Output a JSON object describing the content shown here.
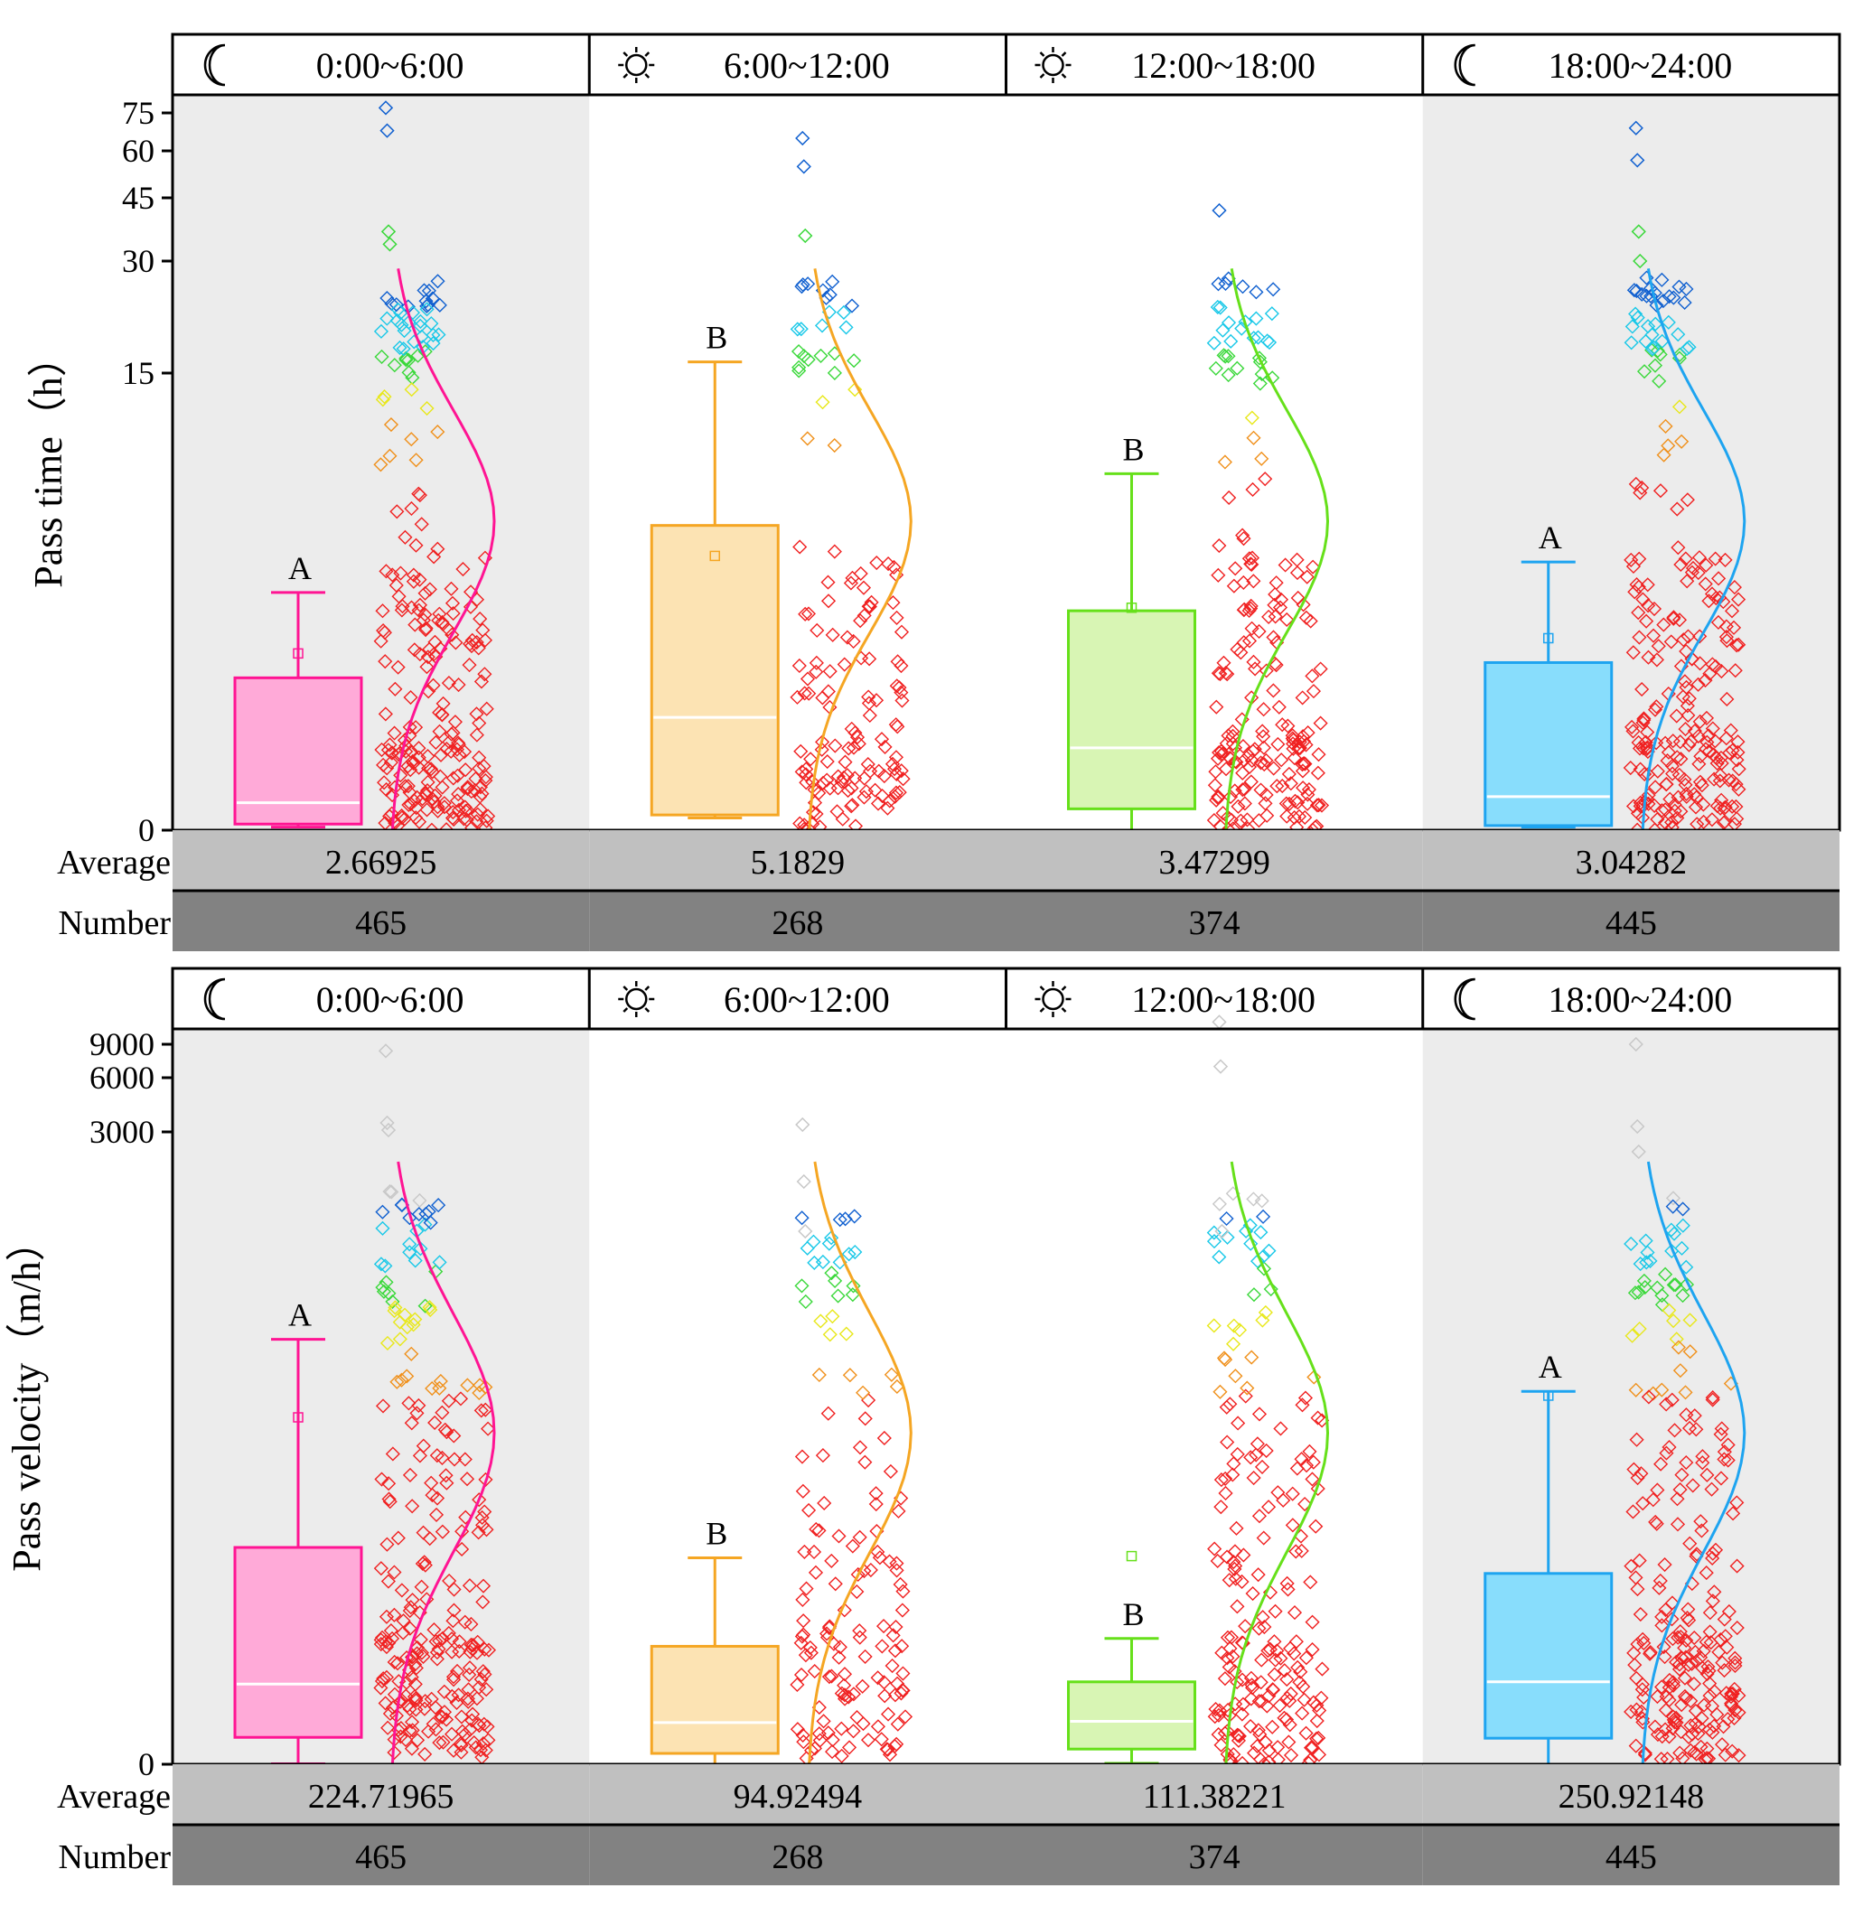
{
  "chart_data": [
    {
      "type": "box",
      "ylabel": "Pass time（h）",
      "ytick_labels": [
        "0",
        "15",
        "30",
        "45",
        "60",
        "75"
      ],
      "ytick_values": [
        0,
        15,
        30,
        45,
        60,
        75
      ],
      "periods": [
        "0:00~6:00",
        "6:00~12:00",
        "12:00~18:00",
        "18:00~24:00"
      ],
      "period_icons": [
        "moon-icon",
        "sun-icon",
        "sun-icon",
        "moon-icon"
      ],
      "colors": [
        "#ff1493",
        "#f5a623",
        "#66e01a",
        "#1ea4f0"
      ],
      "fill_colors": [
        "#ffaad8",
        "#fce3b3",
        "#d8f5b4",
        "#88ddfc"
      ],
      "shaded_panels": [
        true,
        false,
        false,
        true
      ],
      "letters": [
        "A",
        "B",
        "B",
        "A"
      ],
      "box_stats": [
        {
          "min": 0.1,
          "q1": 0.2,
          "median": 0.9,
          "q3": 5.0,
          "max": 7.8,
          "mean": 5.8
        },
        {
          "min": 0.4,
          "q1": 0.5,
          "median": 3.7,
          "q3": 10.0,
          "max": 16.5,
          "mean": 9.0
        },
        {
          "min": 0.0,
          "q1": 0.7,
          "median": 2.7,
          "q3": 7.2,
          "max": 11.7,
          "mean": 7.3
        },
        {
          "min": 0.1,
          "q1": 0.15,
          "median": 1.1,
          "q3": 5.5,
          "max": 8.8,
          "mean": 6.3
        }
      ],
      "outliers": [
        [
          77,
          68,
          37,
          34
        ],
        [
          65,
          55,
          36
        ],
        [
          42
        ],
        [
          69,
          57,
          37,
          30
        ]
      ],
      "row_labels": [
        "Average",
        "Number"
      ],
      "averages": [
        "2.66925",
        "5.1829",
        "3.47299",
        "3.04282"
      ],
      "numbers": [
        "465",
        "268",
        "374",
        "445"
      ]
    },
    {
      "type": "box",
      "ylabel": "Pass velocity（m/h）",
      "ytick_labels": [
        "0",
        "3000",
        "6000",
        "9000"
      ],
      "ytick_values": [
        0,
        3000,
        6000,
        9000
      ],
      "periods": [
        "0:00~6:00",
        "6:00~12:00",
        "12:00~18:00",
        "18:00~24:00"
      ],
      "period_icons": [
        "moon-icon",
        "sun-icon",
        "sun-icon",
        "moon-icon"
      ],
      "colors": [
        "#ff1493",
        "#f5a623",
        "#66e01a",
        "#1ea4f0"
      ],
      "fill_colors": [
        "#ffaad8",
        "#fce3b3",
        "#d8f5b4",
        "#88ddfc"
      ],
      "shaded_panels": [
        true,
        false,
        false,
        true
      ],
      "letters": [
        "A",
        "B",
        "B",
        "A"
      ],
      "box_stats": [
        {
          "min": 1,
          "q1": 62,
          "median": 185,
          "q3": 500,
          "max": 980,
          "mean": 800
        },
        {
          "min": 0,
          "q1": 25,
          "median": 96,
          "q3": 272,
          "max": 476,
          "mean": null
        },
        {
          "min": 2,
          "q1": 35,
          "median": 99,
          "q3": 190,
          "max": 290,
          "mean": 480
        },
        {
          "min": 0,
          "q1": 60,
          "median": 190,
          "q3": 440,
          "max": 860,
          "mean": 850
        }
      ],
      "outliers": [
        [
          8400,
          3500,
          3100,
          2400
        ],
        [
          3400,
          2500,
          2000
        ],
        [
          11000,
          7000,
          2000
        ],
        [
          9000,
          3300,
          2800
        ]
      ],
      "row_labels": [
        "Average",
        "Number"
      ],
      "averages": [
        "224.71965",
        "94.92494",
        "111.38221",
        "250.92148"
      ],
      "numbers": [
        "465",
        "268",
        "374",
        "445"
      ]
    }
  ]
}
